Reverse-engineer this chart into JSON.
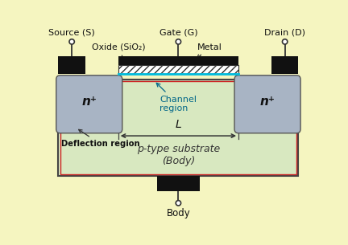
{
  "bg_color": "#f5f5c0",
  "substrate_color": "#d8e8c0",
  "substrate_border_color": "#444444",
  "n_region_color": "#a8b4c4",
  "n_region_border_color": "#555555",
  "metal_contact_color": "#111111",
  "oxide_bg_color": "#ffffff",
  "channel_line_color": "#00bbdd",
  "depletion_border_color": "#cc2222",
  "label_color": "#111111",
  "body_label": "Body",
  "source_label": "Source (S)",
  "gate_label": "Gate (G)",
  "drain_label": "Drain (D)",
  "oxide_label": "Oxide (SiO₂)",
  "metal_label": "Metal",
  "channel_label": "Channel\nregion",
  "depletion_label": "Deflection region",
  "substrate_label1": "p-type substrate",
  "substrate_label2": "(Body)",
  "L_label": "L",
  "n_plus": "n⁺"
}
